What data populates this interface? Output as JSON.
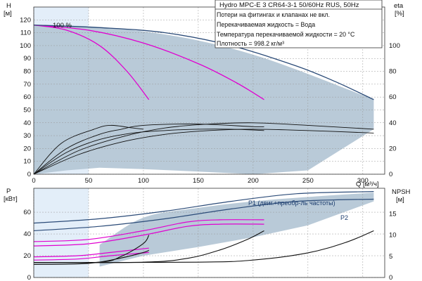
{
  "title": "Hydro MPC-E 3 CR64-3-1 50/60Hz RUS, 50Hz",
  "conditions": [
    "Потери на фитингах и клапанах не вкл.",
    "Перекачиваемая жидкость = Вода",
    "Температура перекачиваемой жидкости = 20 °C",
    "Плотность = 998.2 кг/м³"
  ],
  "colors": {
    "area_fill": "#b5c7d6",
    "area_edge": "#2b4b78",
    "light_band": "#e3eef9",
    "magenta": "#e000d0",
    "black": "#111111",
    "grid": "#999999"
  },
  "chart_data": [
    {
      "type": "line",
      "panel": "top",
      "axes": {
        "x": {
          "label": "Q [м³/ч]",
          "range": [
            0,
            320
          ],
          "ticks": [
            0,
            50,
            100,
            150,
            200,
            250,
            300
          ]
        },
        "y_left": {
          "label_line1": "H",
          "label_line2": "[м]",
          "range": [
            0,
            130
          ],
          "ticks": [
            0,
            10,
            20,
            30,
            40,
            50,
            60,
            70,
            80,
            90,
            100,
            110,
            120
          ]
        },
        "y_right": {
          "label_line1": "eta",
          "label_line2": "[%]",
          "range": [
            0,
            130
          ],
          "ticks": [
            0,
            20,
            40,
            60,
            80,
            100
          ]
        }
      },
      "annotations": [
        "100 %"
      ],
      "grid": true,
      "operating_area_upper": [
        [
          0,
          116
        ],
        [
          50,
          115
        ],
        [
          100,
          111
        ],
        [
          150,
          104
        ],
        [
          200,
          93
        ],
        [
          250,
          78
        ],
        [
          310,
          58
        ]
      ],
      "operating_area_lower": [
        [
          0,
          0
        ],
        [
          30,
          3
        ],
        [
          60,
          5
        ],
        [
          100,
          4
        ],
        [
          150,
          2
        ],
        [
          200,
          0
        ],
        [
          250,
          3
        ],
        [
          310,
          35
        ]
      ],
      "series": [
        {
          "key": "h_1pump",
          "color": "magenta",
          "points": [
            [
              0,
              116
            ],
            [
              30,
              112
            ],
            [
              60,
              100
            ],
            [
              85,
              80
            ],
            [
              105,
              58
            ]
          ]
        },
        {
          "key": "h_2pump",
          "color": "magenta",
          "points": [
            [
              0,
              116
            ],
            [
              50,
              112
            ],
            [
              100,
              102
            ],
            [
              150,
              86
            ],
            [
              185,
              71
            ],
            [
              210,
              58
            ]
          ]
        },
        {
          "key": "h_3pump",
          "color": "navy",
          "points": [
            [
              0,
              116
            ],
            [
              60,
              114
            ],
            [
              120,
              110
            ],
            [
              180,
              100
            ],
            [
              240,
              84
            ],
            [
              275,
              72
            ],
            [
              310,
              58
            ]
          ]
        },
        {
          "key": "eta_a",
          "color": "black",
          "points": [
            [
              0,
              0
            ],
            [
              25,
              24
            ],
            [
              55,
              35
            ],
            [
              70,
              38
            ],
            [
              90,
              36
            ],
            [
              100,
              35
            ]
          ]
        },
        {
          "key": "eta_b",
          "color": "black",
          "points": [
            [
              0,
              0
            ],
            [
              30,
              20
            ],
            [
              60,
              31
            ],
            [
              80,
              35
            ],
            [
              100,
              38
            ],
            [
              150,
              39
            ],
            [
              200,
              37
            ],
            [
              210,
              37
            ]
          ]
        },
        {
          "key": "eta_c",
          "color": "black",
          "points": [
            [
              0,
              0
            ],
            [
              40,
              18
            ],
            [
              80,
              29
            ],
            [
              120,
              36
            ],
            [
              160,
              39
            ],
            [
              200,
              40
            ],
            [
              250,
              38
            ],
            [
              310,
              35
            ]
          ]
        },
        {
          "key": "eta_d",
          "color": "black",
          "points": [
            [
              0,
              0
            ],
            [
              40,
              15
            ],
            [
              80,
              25
            ],
            [
              120,
              31
            ],
            [
              160,
              34
            ],
            [
              200,
              35
            ],
            [
              250,
              34
            ],
            [
              310,
              32
            ]
          ]
        },
        {
          "key": "eta_e",
          "color": "black",
          "points": [
            [
              0,
              0
            ],
            [
              30,
              17
            ],
            [
              60,
              27
            ],
            [
              90,
              32
            ],
            [
              120,
              34
            ],
            [
              150,
              35
            ],
            [
              180,
              35
            ],
            [
              210,
              34
            ]
          ]
        }
      ]
    },
    {
      "type": "line",
      "panel": "bottom",
      "axes": {
        "y_left": {
          "label_line1": "P",
          "label_line2": "[кВт]",
          "range": [
            0,
            82
          ],
          "ticks": [
            0,
            20,
            40,
            60
          ]
        },
        "y_right": {
          "label_line1": "NPSH",
          "label_line2": "[м]",
          "range": [
            0,
            21
          ],
          "ticks": [
            0,
            5,
            10,
            15
          ]
        }
      },
      "labels": [
        "P1 (двиг.+преобр-ль частоты)",
        "P2"
      ],
      "grid": true,
      "operating_area_upper": [
        [
          60,
          30
        ],
        [
          100,
          55
        ],
        [
          150,
          64
        ],
        [
          200,
          70
        ],
        [
          250,
          74
        ],
        [
          310,
          78
        ]
      ],
      "operating_area_lower": [
        [
          60,
          10
        ],
        [
          100,
          20
        ],
        [
          150,
          28
        ],
        [
          200,
          37
        ],
        [
          250,
          48
        ],
        [
          310,
          70
        ]
      ],
      "series": [
        {
          "key": "p1_total",
          "color": "navy",
          "points": [
            [
              0,
              50
            ],
            [
              60,
              54
            ],
            [
              120,
              61
            ],
            [
              180,
              70
            ],
            [
              240,
              77
            ],
            [
              310,
              79
            ]
          ]
        },
        {
          "key": "p2_total",
          "color": "navy",
          "points": [
            [
              0,
              43
            ],
            [
              60,
              47
            ],
            [
              120,
              54
            ],
            [
              180,
              63
            ],
            [
              240,
              70
            ],
            [
              310,
              72
            ]
          ]
        },
        {
          "key": "p_2pump_a",
          "color": "magenta",
          "points": [
            [
              0,
              33
            ],
            [
              50,
              35
            ],
            [
              100,
              43
            ],
            [
              140,
              51
            ],
            [
              170,
              53
            ],
            [
              210,
              53
            ]
          ]
        },
        {
          "key": "p_2pump_b",
          "color": "magenta",
          "points": [
            [
              0,
              29
            ],
            [
              50,
              31
            ],
            [
              100,
              39
            ],
            [
              140,
              47
            ],
            [
              170,
              49
            ],
            [
              210,
              49
            ]
          ]
        },
        {
          "key": "p_1pump_a",
          "color": "magenta",
          "points": [
            [
              0,
              19
            ],
            [
              40,
              20
            ],
            [
              70,
              23
            ],
            [
              105,
              27
            ]
          ]
        },
        {
          "key": "p_1pump_b",
          "color": "magenta",
          "points": [
            [
              0,
              16
            ],
            [
              40,
              17
            ],
            [
              70,
              20
            ],
            [
              105,
              23
            ]
          ]
        },
        {
          "key": "npsh_1",
          "color": "black",
          "axis": "right",
          "points": [
            [
              0,
              3.5
            ],
            [
              60,
              3.6
            ],
            [
              80,
              5
            ],
            [
              100,
              8
            ],
            [
              105,
              10
            ]
          ]
        },
        {
          "key": "npsh_2",
          "color": "black",
          "axis": "right",
          "points": [
            [
              0,
              3.5
            ],
            [
              100,
              3.6
            ],
            [
              140,
              4.5
            ],
            [
              170,
              6.5
            ],
            [
              195,
              9
            ],
            [
              210,
              11
            ]
          ]
        },
        {
          "key": "npsh_3",
          "color": "black",
          "axis": "right",
          "points": [
            [
              0,
              3.5
            ],
            [
              150,
              3.6
            ],
            [
              200,
              4.1
            ],
            [
              250,
              5.8
            ],
            [
              285,
              8.3
            ],
            [
              310,
              11
            ]
          ]
        },
        {
          "key": "p_1pump_low",
          "color": "black",
          "points": [
            [
              0,
              12
            ],
            [
              50,
              13
            ],
            [
              80,
              18
            ],
            [
              100,
              23
            ],
            [
              105,
              25
            ]
          ]
        }
      ]
    }
  ]
}
